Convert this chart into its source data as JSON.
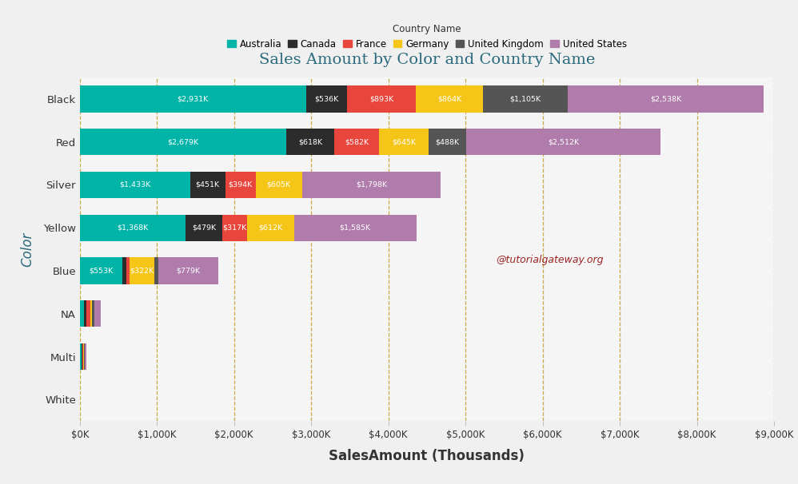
{
  "title": "Sales Amount by Color and Country Name",
  "xlabel": "SalesAmount (Thousands)",
  "ylabel": "Color",
  "legend_title": "Country Name",
  "categories_display": [
    "Black",
    "Red",
    "Silver",
    "Yellow",
    "Blue",
    "NA",
    "Multi",
    "White"
  ],
  "countries": [
    "Australia",
    "Canada",
    "France",
    "Germany",
    "United Kingdom",
    "United States"
  ],
  "colors": [
    "#00b4a8",
    "#2c2c2c",
    "#e8453c",
    "#f5c518",
    "#555555",
    "#b07cac"
  ],
  "data_ordered": {
    "White": [
      0,
      0,
      0,
      0,
      0,
      0
    ],
    "Multi": [
      20,
      10,
      15,
      10,
      5,
      30
    ],
    "NA": [
      55,
      35,
      42,
      30,
      22,
      85
    ],
    "Blue": [
      553,
      50,
      45,
      322,
      50,
      779
    ],
    "Yellow": [
      1368,
      479,
      317,
      612,
      0,
      1585
    ],
    "Silver": [
      1433,
      451,
      394,
      605,
      0,
      1798
    ],
    "Red": [
      2679,
      618,
      582,
      645,
      488,
      2512
    ],
    "Black": [
      2931,
      536,
      893,
      864,
      1105,
      2538
    ]
  },
  "labels_ordered": {
    "White": [
      "",
      "",
      "",
      "",
      "",
      ""
    ],
    "Multi": [
      "",
      "",
      "",
      "",
      "",
      ""
    ],
    "NA": [
      "",
      "",
      "",
      "",
      "",
      ""
    ],
    "Blue": [
      "$553K",
      "",
      "",
      "$322K",
      "",
      "$779K"
    ],
    "Yellow": [
      "$1,368K",
      "$479K",
      "$317K",
      "$612K",
      "",
      "$1,585K"
    ],
    "Silver": [
      "$1,433K",
      "$451K",
      "$394K",
      "$605K",
      "",
      "$1,798K"
    ],
    "Red": [
      "$2,679K",
      "$618K",
      "$582K",
      "$645K",
      "$488K",
      "$2,512K"
    ],
    "Black": [
      "$2,931K",
      "$536K",
      "$893K",
      "$864K",
      "$1,105K",
      "$2,538K"
    ]
  },
  "categories_bottom_to_top": [
    "White",
    "Multi",
    "NA",
    "Blue",
    "Yellow",
    "Silver",
    "Red",
    "Black"
  ],
  "xlim": [
    0,
    9000
  ],
  "xticks": [
    0,
    1000,
    2000,
    3000,
    4000,
    5000,
    6000,
    7000,
    8000,
    9000
  ],
  "xtick_labels": [
    "$0K",
    "$1,000K",
    "$2,000K",
    "$3,000K",
    "$4,000K",
    "$5,000K",
    "$6,000K",
    "$7,000K",
    "$8,000K",
    "$9,000K"
  ],
  "bg_color": "#f0f0f0",
  "plot_bg": "#f5f5f5",
  "grid_color": "#c8a030",
  "title_color": "#2a6a7c",
  "label_color": "#ffffff",
  "watermark": "@tutorialgateway.org",
  "watermark_color": "#8b0000"
}
